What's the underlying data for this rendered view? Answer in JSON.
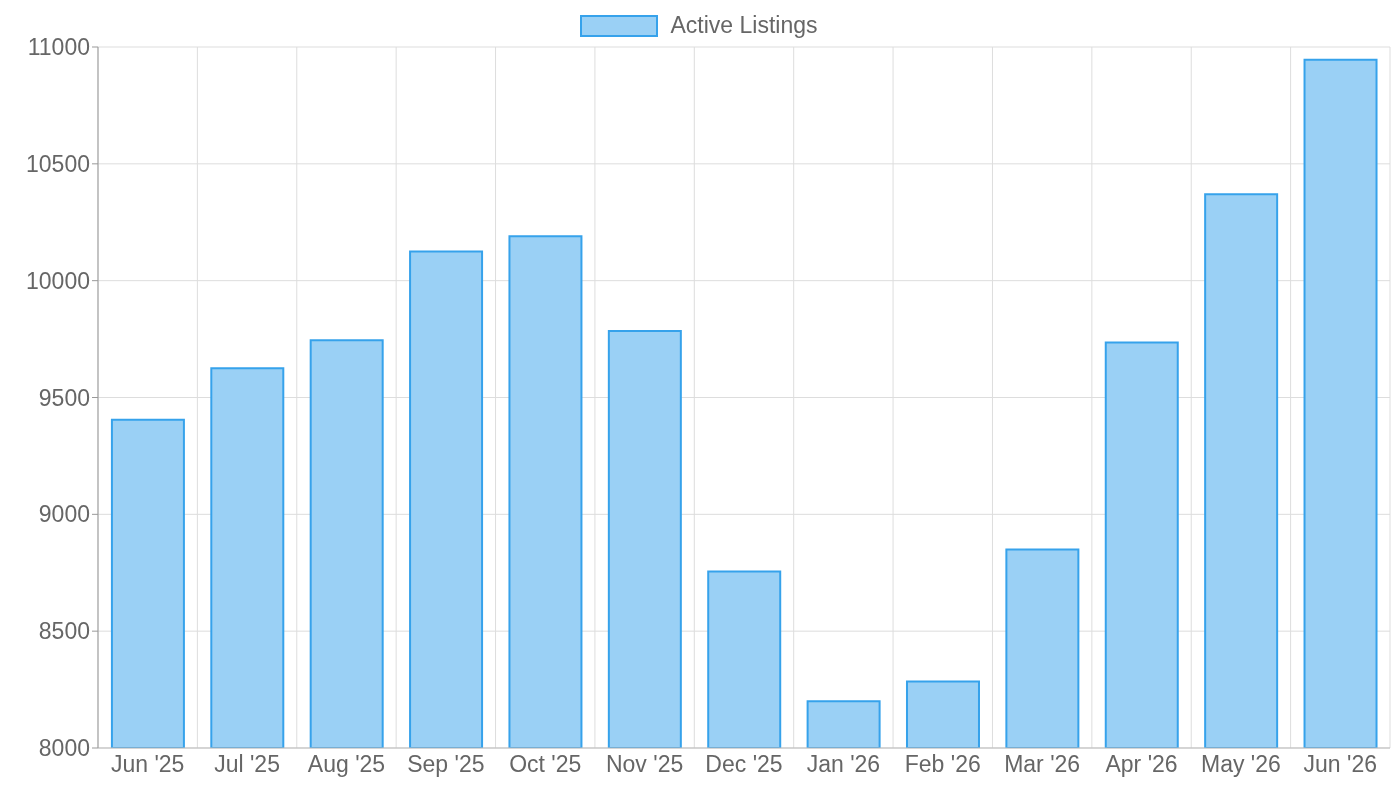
{
  "chart_data": {
    "type": "bar",
    "categories": [
      "Jun '25",
      "Jul '25",
      "Aug '25",
      "Sep '25",
      "Oct '25",
      "Nov '25",
      "Dec '25",
      "Jan '26",
      "Feb '26",
      "Mar '26",
      "Apr '26",
      "May '26",
      "Jun '26"
    ],
    "series": [
      {
        "name": "Active Listings",
        "color": "#9ad0f5",
        "values": [
          9405,
          9625,
          9745,
          10125,
          10190,
          9785,
          8755,
          8200,
          8285,
          8850,
          9735,
          10370,
          10945
        ]
      }
    ],
    "ylim": [
      8000,
      11000
    ],
    "yticks": [
      8000,
      8500,
      9000,
      9500,
      10000,
      10500,
      11000
    ],
    "grid": true,
    "legend": "top"
  }
}
